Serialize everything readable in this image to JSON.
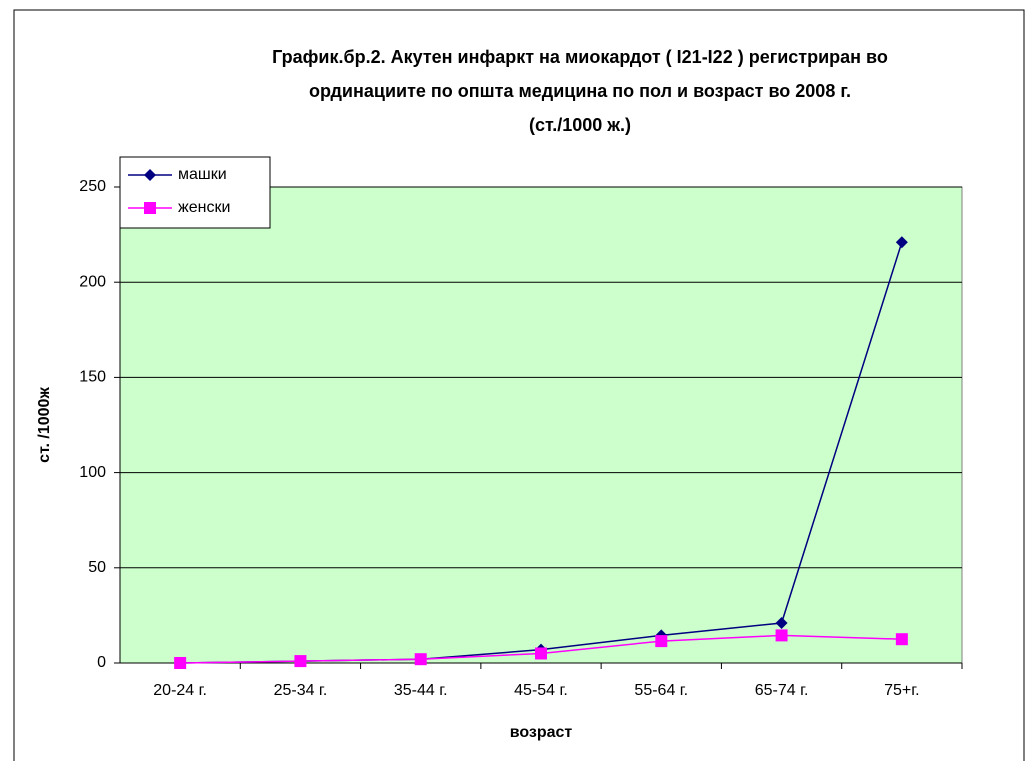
{
  "chart_data": {
    "type": "line",
    "title": [
      "График.бр.2. Акутен инфаркт на миокардот ( I21-I22 ) регистриран во",
      "ординациите по општа медицина по пол и возраст во 2008 г.",
      "(ст./1000 ж.)"
    ],
    "xlabel": "возраст",
    "ylabel": "ст. /1000ж",
    "categories": [
      "20-24 г.",
      "25-34 г.",
      "35-44 г.",
      "45-54 г.",
      "55-64 г.",
      "65-74 г.",
      "75+г."
    ],
    "series": [
      {
        "name": "машки",
        "color": "#000080",
        "marker": "diamond",
        "values": [
          0,
          1,
          2,
          7,
          14.5,
          21,
          221
        ]
      },
      {
        "name": "женски",
        "color": "#ff00ff",
        "marker": "square",
        "values": [
          0,
          1,
          2,
          5,
          11.5,
          14.5,
          12.5
        ]
      }
    ],
    "ylim": [
      0,
      250
    ],
    "yticks": [
      0,
      50,
      100,
      150,
      200,
      250
    ],
    "grid": true,
    "legend": "upper left",
    "plot_background": "#ccffcc"
  }
}
